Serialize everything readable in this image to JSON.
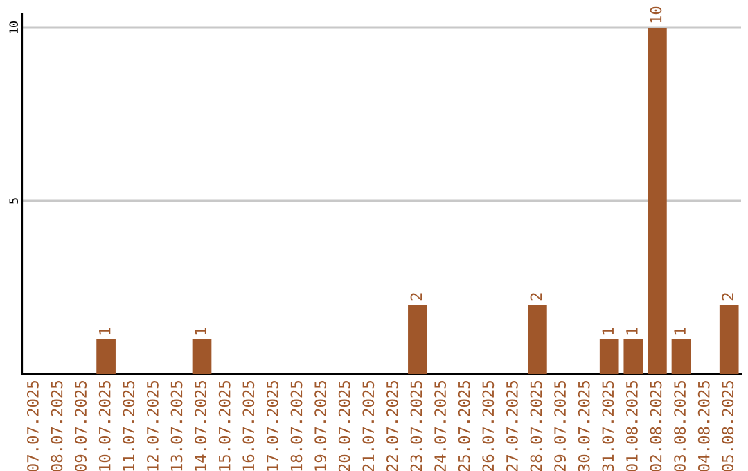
{
  "chart_data": {
    "type": "bar",
    "categories": [
      "07.07.2025",
      "08.07.2025",
      "09.07.2025",
      "10.07.2025",
      "11.07.2025",
      "12.07.2025",
      "13.07.2025",
      "14.07.2025",
      "15.07.2025",
      "16.07.2025",
      "17.07.2025",
      "18.07.2025",
      "19.07.2025",
      "20.07.2025",
      "21.07.2025",
      "22.07.2025",
      "23.07.2025",
      "24.07.2025",
      "25.07.2025",
      "26.07.2025",
      "27.07.2025",
      "28.07.2025",
      "29.07.2025",
      "30.07.2025",
      "31.07.2025",
      "01.08.2025",
      "02.08.2025",
      "03.08.2025",
      "04.08.2025",
      "05.08.2025"
    ],
    "values": [
      0,
      0,
      0,
      1,
      0,
      0,
      0,
      1,
      0,
      0,
      0,
      0,
      0,
      0,
      0,
      0,
      2,
      0,
      0,
      0,
      0,
      2,
      0,
      0,
      1,
      1,
      10,
      1,
      0,
      2
    ],
    "value_labels": [
      null,
      null,
      null,
      "1",
      null,
      null,
      null,
      "1",
      null,
      null,
      null,
      null,
      null,
      null,
      null,
      null,
      "2",
      null,
      null,
      null,
      null,
      "2",
      null,
      null,
      "1",
      "1",
      "10",
      "1",
      null,
      "2"
    ],
    "color": "#a0572a",
    "ylim": [
      0,
      10.4
    ],
    "yticks": [
      5,
      10
    ],
    "grid": "y"
  }
}
